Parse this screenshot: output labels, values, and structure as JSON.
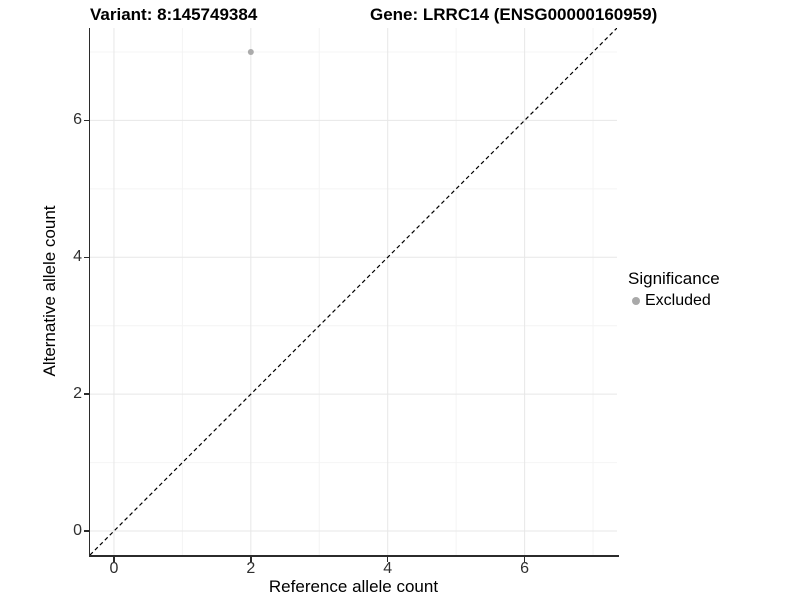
{
  "title": {
    "variant": "Variant: 8:145749384",
    "gene": "Gene: LRRC14 (ENSG00000160959)"
  },
  "chart_data": {
    "type": "scatter",
    "title": "Variant: 8:145749384   Gene: LRRC14 (ENSG00000160959)",
    "xlabel": "Reference allele count",
    "ylabel": "Alternative allele count",
    "xlim": [
      -0.35,
      7.35
    ],
    "ylim": [
      -0.35,
      7.35
    ],
    "x_ticks": [
      0,
      2,
      4,
      6
    ],
    "y_ticks": [
      0,
      2,
      4,
      6
    ],
    "x_minor_ticks": [
      1,
      3,
      5,
      7
    ],
    "y_minor_ticks": [
      1,
      3,
      5,
      7
    ],
    "grid": "on",
    "series": [
      {
        "name": "Excluded",
        "color": "#ababab",
        "points": [
          {
            "x": 2,
            "y": 7
          }
        ],
        "point_radius": 3
      }
    ],
    "reference_line": {
      "equation": "y = x",
      "style": "dashed",
      "color": "#000000"
    },
    "legend": {
      "title": "Significance",
      "position": "right",
      "items": [
        {
          "label": "Excluded",
          "color": "#a9a9a9"
        }
      ]
    }
  },
  "colors": {
    "background": "#ffffff",
    "grid_major": "#e7e7e7",
    "grid_minor": "#f4f4f4",
    "axis_line": "#2b2b2b",
    "tick_text": "#303030",
    "title_text": "#000000"
  }
}
